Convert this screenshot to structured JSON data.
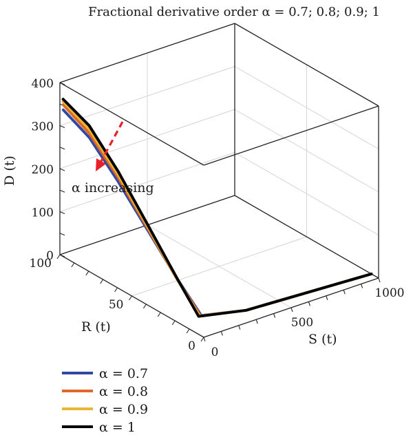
{
  "chart_data": {
    "type": "line",
    "title": "Fractional derivative order α = 0.7; 0.8; 0.9; 1",
    "xlabel": "S (t)",
    "ylabel": "R (t)",
    "zlabel": "D (t)",
    "xlim": [
      0,
      1000
    ],
    "ylim": [
      0,
      100
    ],
    "zlim": [
      0,
      400
    ],
    "x_ticks": [
      "0",
      "500",
      "1000"
    ],
    "y_ticks": [
      "0",
      "50",
      "100"
    ],
    "z_ticks": [
      "0",
      "100",
      "200",
      "300",
      "400"
    ],
    "grid": true,
    "projection": "3d",
    "annotation": {
      "text": "α increasing",
      "color": "#e8202a"
    },
    "series": [
      {
        "name": "α = 0.7",
        "color": "#2e4aa3",
        "points": [
          [
            1000,
            5,
            0
          ],
          [
            700,
            6,
            3
          ],
          [
            300,
            7,
            8
          ],
          [
            60,
            9,
            25
          ],
          [
            20,
            20,
            90
          ],
          [
            10,
            40,
            170
          ],
          [
            6,
            60,
            245
          ],
          [
            4,
            80,
            310
          ],
          [
            3,
            98,
            340
          ]
        ]
      },
      {
        "name": "α = 0.8",
        "color": "#e0662a",
        "points": [
          [
            1000,
            5,
            0
          ],
          [
            700,
            6,
            3
          ],
          [
            300,
            7,
            8
          ],
          [
            55,
            9,
            25
          ],
          [
            18,
            20,
            90
          ],
          [
            9,
            40,
            175
          ],
          [
            5,
            60,
            255
          ],
          [
            4,
            80,
            320
          ],
          [
            3,
            98,
            352
          ]
        ]
      },
      {
        "name": "α = 0.9",
        "color": "#e8b630",
        "points": [
          [
            1000,
            5,
            0
          ],
          [
            700,
            6,
            3
          ],
          [
            300,
            7,
            8
          ],
          [
            50,
            9,
            25
          ],
          [
            16,
            20,
            92
          ],
          [
            8,
            40,
            180
          ],
          [
            5,
            60,
            262
          ],
          [
            3,
            80,
            330
          ],
          [
            2,
            98,
            360
          ]
        ]
      },
      {
        "name": "α = 1",
        "color": "#000000",
        "points": [
          [
            1000,
            5,
            0
          ],
          [
            700,
            6,
            3
          ],
          [
            300,
            7,
            8
          ],
          [
            45,
            9,
            25
          ],
          [
            14,
            20,
            95
          ],
          [
            7,
            40,
            185
          ],
          [
            4,
            60,
            270
          ],
          [
            3,
            80,
            338
          ],
          [
            2,
            98,
            365
          ]
        ]
      }
    ]
  }
}
